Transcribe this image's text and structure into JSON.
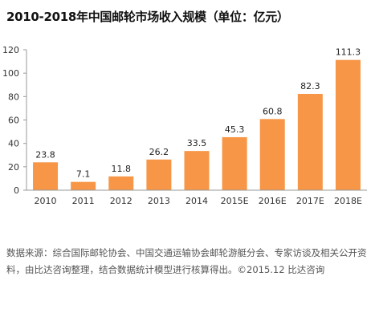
{
  "chart_data": {
    "type": "bar",
    "title": "2010-2018年中国邮轮市场收入规模（单位：亿元）",
    "categories": [
      "2010",
      "2011",
      "2012",
      "2013",
      "2014",
      "2015E",
      "2016E",
      "2017E",
      "2018E"
    ],
    "values": [
      23.8,
      7.1,
      11.8,
      26.2,
      33.5,
      45.3,
      60.8,
      82.3,
      111.3
    ],
    "value_labels": [
      "23.8",
      "7.1",
      "11.8",
      "26.2",
      "33.5",
      "45.3",
      "60.8",
      "82.3",
      "111.3"
    ],
    "ylim": [
      0,
      120
    ],
    "yticks": [
      0,
      20,
      40,
      60,
      80,
      100,
      120
    ],
    "xlabel": "",
    "ylabel": "",
    "bar_color": "#F79646",
    "grid": false,
    "legend": "none"
  },
  "footer": {
    "source": "数据来源：综合国际邮轮协会、中国交通运输协会邮轮游艇分会、专家访谈及相关公开资料，由比达咨询整理，结合数据统计模型进行核算得出。©2015.12 比达咨询"
  }
}
